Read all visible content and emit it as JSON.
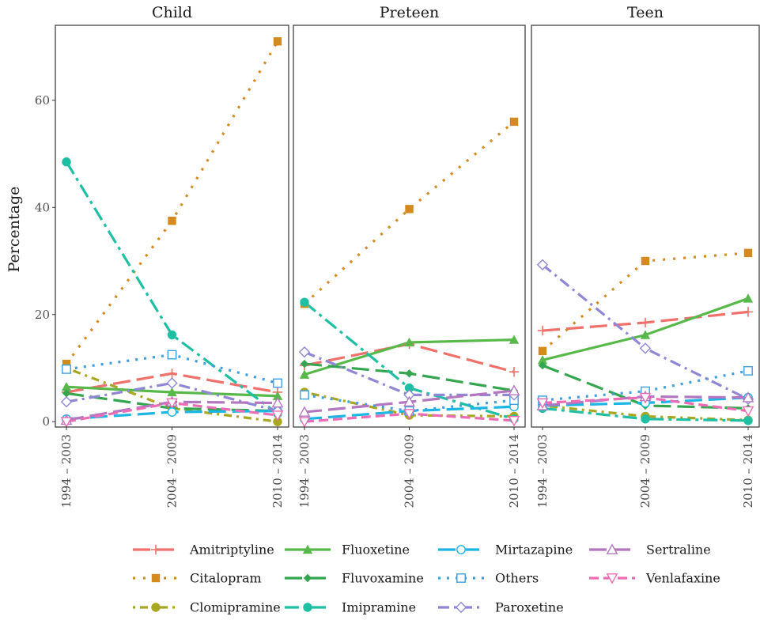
{
  "chart_data": {
    "type": "line",
    "ylabel": "Percentage",
    "ylim": [
      -1,
      74
    ],
    "yticks": [
      0,
      20,
      40,
      60
    ],
    "categories": [
      "1994 – 2003",
      "2004 – 2009",
      "2010 – 2014"
    ],
    "panels": [
      "Child",
      "Preteen",
      "Teen"
    ],
    "grid": false,
    "legend_position": "bottom",
    "series": [
      {
        "name": "Amitriptyline",
        "color": "#f0716b",
        "marker": "plus",
        "dash": "22 8",
        "values": {
          "Child": [
            5.5,
            9.0,
            5.5
          ],
          "Preteen": [
            10.5,
            14.5,
            9.3
          ],
          "Teen": [
            17.0,
            18.5,
            20.5
          ]
        }
      },
      {
        "name": "Citalopram",
        "color": "#d48a1f",
        "marker": "filled-square",
        "dash": "3 10",
        "values": {
          "Child": [
            10.8,
            37.5,
            71.0
          ],
          "Preteen": [
            22.0,
            39.7,
            56.0
          ],
          "Teen": [
            13.2,
            30.0,
            31.5
          ]
        }
      },
      {
        "name": "Clomipramine",
        "color": "#a9a621",
        "marker": "filled-circle",
        "dash": "3 6 10 6",
        "values": {
          "Child": [
            10.0,
            2.5,
            0.0
          ],
          "Preteen": [
            5.5,
            1.2,
            1.0
          ],
          "Teen": [
            3.0,
            1.0,
            0.3
          ]
        }
      },
      {
        "name": "Fluoxetine",
        "color": "#58b94a",
        "marker": "filled-triangle",
        "dash": "",
        "values": {
          "Child": [
            6.5,
            5.5,
            4.8
          ],
          "Preteen": [
            8.8,
            14.8,
            15.3
          ],
          "Teen": [
            11.5,
            16.2,
            23.0
          ]
        }
      },
      {
        "name": "Fluvoxamine",
        "color": "#33a64f",
        "marker": "filled-diamond",
        "dash": "22 8",
        "values": {
          "Child": [
            5.3,
            2.5,
            2.0
          ],
          "Preteen": [
            10.8,
            9.0,
            5.8
          ],
          "Teen": [
            10.5,
            3.0,
            2.5
          ]
        }
      },
      {
        "name": "Imipramine",
        "color": "#1fbfa4",
        "marker": "filled-circle",
        "dash": "18 6 4 6",
        "values": {
          "Child": [
            48.5,
            16.2,
            1.5
          ],
          "Preteen": [
            22.3,
            6.3,
            0.5
          ],
          "Teen": [
            2.5,
            0.5,
            0.2
          ]
        }
      },
      {
        "name": "Mirtazapine",
        "color": "#1bb6e3",
        "marker": "open-circle",
        "dash": "22 8",
        "values": {
          "Child": [
            0.5,
            1.8,
            2.0
          ],
          "Preteen": [
            0.5,
            2.0,
            2.8
          ],
          "Teen": [
            3.0,
            3.5,
            4.5
          ]
        }
      },
      {
        "name": "Others",
        "color": "#3d9fe0",
        "marker": "open-square",
        "dash": "3 8",
        "values": {
          "Child": [
            9.8,
            12.5,
            7.2
          ],
          "Preteen": [
            5.0,
            2.0,
            4.0
          ],
          "Teen": [
            4.0,
            5.7,
            9.5
          ]
        }
      },
      {
        "name": "Paroxetine",
        "color": "#8f87d4",
        "marker": "open-diamond",
        "dash": "14 6 3 6",
        "values": {
          "Child": [
            3.7,
            7.2,
            2.0
          ],
          "Preteen": [
            13.0,
            5.0,
            5.0
          ],
          "Teen": [
            29.3,
            13.7,
            4.2
          ]
        }
      },
      {
        "name": "Sertraline",
        "color": "#b376c1",
        "marker": "open-triangle",
        "dash": "22 8",
        "values": {
          "Child": [
            0.3,
            3.7,
            3.5
          ],
          "Preteen": [
            1.8,
            3.7,
            5.8
          ],
          "Teen": [
            3.0,
            4.7,
            4.5
          ]
        }
      },
      {
        "name": "Venlafaxine",
        "color": "#ec6cb6",
        "marker": "open-triangle-down",
        "dash": "12 6",
        "values": {
          "Child": [
            0.0,
            3.5,
            1.2
          ],
          "Preteen": [
            0.0,
            1.5,
            0.2
          ],
          "Teen": [
            3.5,
            4.5,
            2.0
          ]
        }
      }
    ]
  }
}
